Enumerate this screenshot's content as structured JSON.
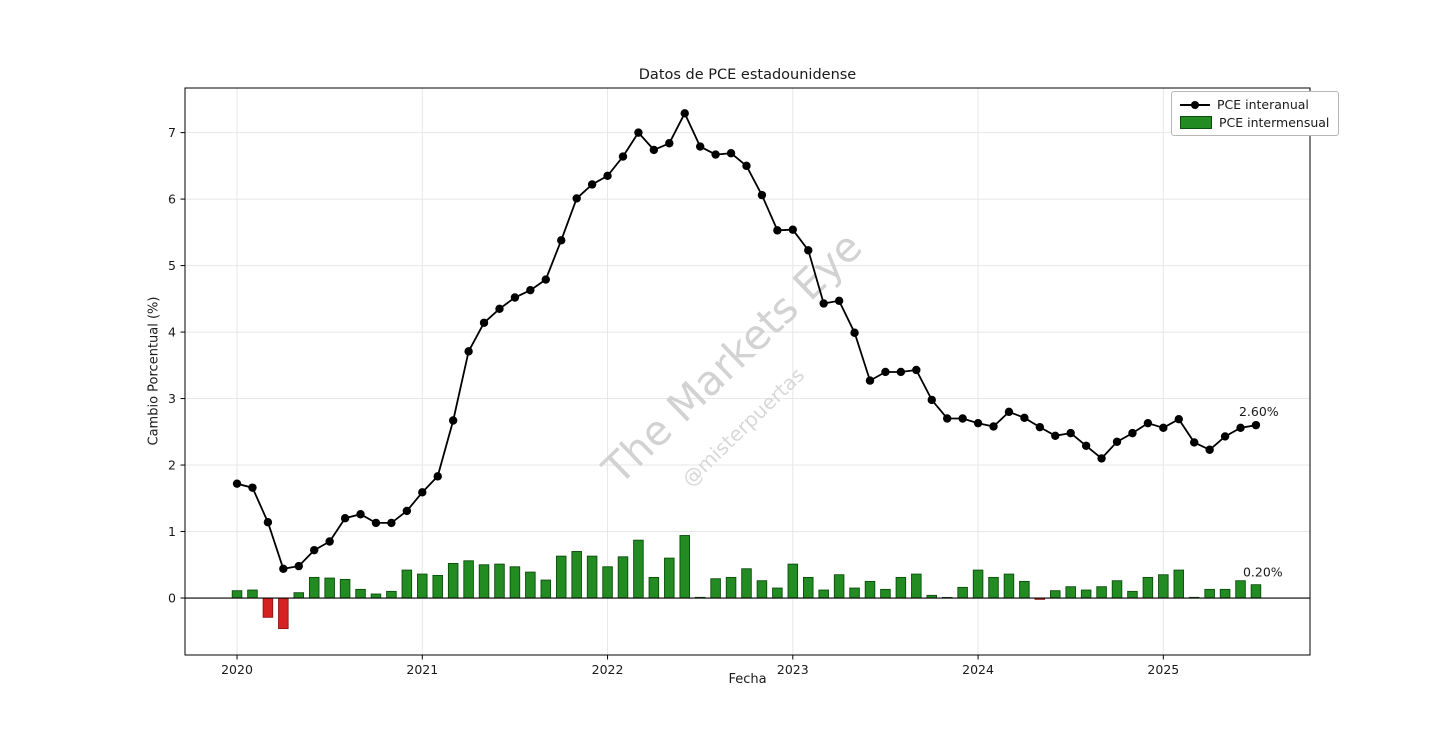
{
  "header": {
    "title": "Datos de PCE estadounidense"
  },
  "watermark": {
    "line1": "The Markets Eye",
    "line2": "@misterpuertas"
  },
  "chart_data": {
    "type": "line+bar",
    "title": "Datos de PCE estadounidense",
    "xlabel": "Fecha",
    "ylabel": "Cambio Porcentual (%)",
    "start_month": "2020-01",
    "months_count": 67,
    "x_tick_labels": [
      "2020",
      "2021",
      "2022",
      "2023",
      "2024",
      "2025"
    ],
    "x_tick_month_index": [
      0,
      12,
      24,
      36,
      48,
      60
    ],
    "y_tick_labels": [
      "0",
      "1",
      "2",
      "3",
      "4",
      "5",
      "6",
      "7"
    ],
    "y_tick_values": [
      0,
      1,
      2,
      3,
      4,
      5,
      6,
      7
    ],
    "ylim": [
      -0.857,
      7.671
    ],
    "xlim_month_index": [
      -3.37,
      69.5
    ],
    "grid": true,
    "legend_position": "top-right",
    "series": [
      {
        "name": "PCE interanual",
        "type": "line",
        "color": "#000000",
        "values": [
          1.72,
          1.66,
          1.14,
          0.44,
          0.48,
          0.72,
          0.85,
          1.2,
          1.26,
          1.13,
          1.13,
          1.31,
          1.59,
          1.83,
          2.67,
          3.71,
          4.14,
          4.35,
          4.52,
          4.63,
          4.79,
          5.38,
          6.01,
          6.22,
          6.35,
          6.64,
          7.0,
          6.74,
          6.84,
          7.29,
          6.79,
          6.67,
          6.69,
          6.5,
          6.06,
          5.53,
          5.54,
          5.23,
          4.43,
          4.47,
          3.99,
          3.27,
          3.4,
          3.4,
          3.43,
          2.98,
          2.7,
          2.7,
          2.63,
          2.58,
          2.8,
          2.71,
          2.57,
          2.44,
          2.48,
          2.29,
          2.1,
          2.35,
          2.48,
          2.63,
          2.56,
          2.69,
          2.34,
          2.23,
          2.43,
          2.56,
          2.6
        ]
      },
      {
        "name": "PCE intermensual",
        "type": "bar",
        "color_positive": "#228B22",
        "color_negative": "#d62121",
        "edge_positive": "#0b4d0b",
        "edge_negative": "#8f1414",
        "values": [
          0.11,
          0.12,
          -0.29,
          -0.46,
          0.08,
          0.31,
          0.3,
          0.28,
          0.13,
          0.06,
          0.1,
          0.42,
          0.36,
          0.34,
          0.52,
          0.56,
          0.5,
          0.51,
          0.47,
          0.39,
          0.27,
          0.63,
          0.7,
          0.63,
          0.47,
          0.62,
          0.87,
          0.31,
          0.6,
          0.94,
          0.01,
          0.29,
          0.31,
          0.44,
          0.26,
          0.15,
          0.51,
          0.31,
          0.12,
          0.35,
          0.15,
          0.25,
          0.13,
          0.31,
          0.36,
          0.04,
          0.0,
          0.16,
          0.42,
          0.31,
          0.36,
          0.25,
          -0.02,
          0.11,
          0.17,
          0.12,
          0.17,
          0.26,
          0.1,
          0.31,
          0.35,
          0.42,
          0.01,
          0.13,
          0.13,
          0.26,
          0.2
        ]
      }
    ],
    "annotations": [
      {
        "text": "2.60%",
        "series": "PCE interanual",
        "month_index": 66
      },
      {
        "text": "0.20%",
        "series": "PCE intermensual",
        "month_index": 66
      }
    ],
    "colors": {
      "grid": "#e7e7e7",
      "spine": "#000000",
      "zero_line": "#000000",
      "watermark": "#d2d2d2",
      "annotation_text": "#1a1a1a"
    }
  }
}
